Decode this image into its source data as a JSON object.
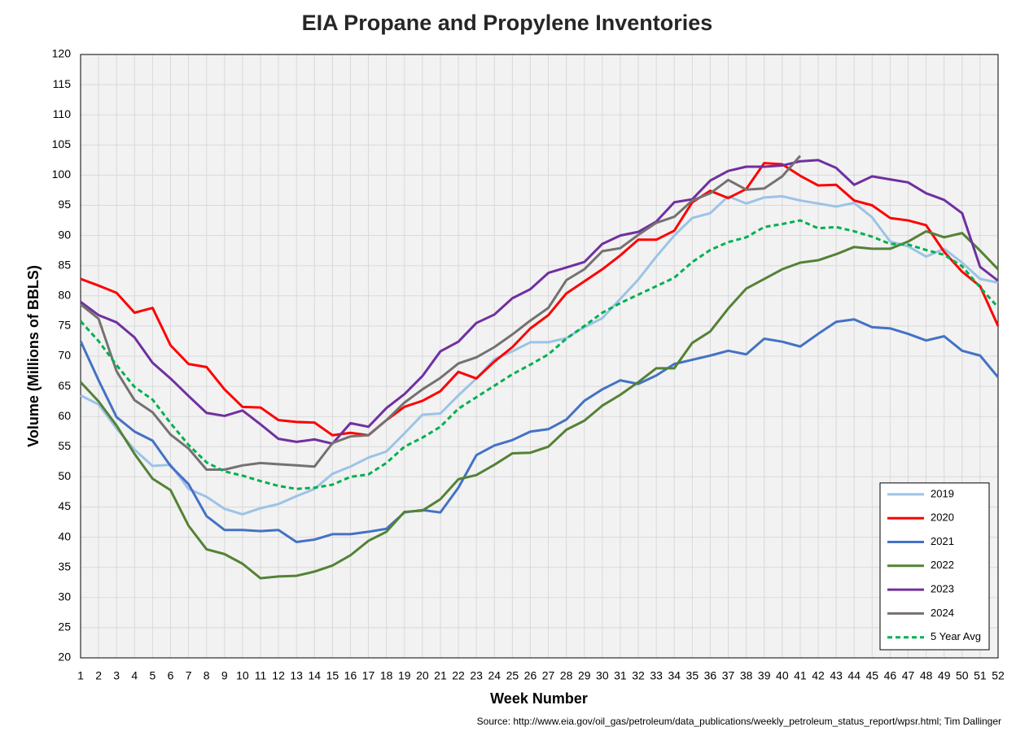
{
  "chart_data": {
    "type": "line",
    "title": "EIA Propane and Propylene Inventories",
    "x_label": "Week Number",
    "y_label": "Volume (Millions of BBLS)",
    "source": "Source: http://www.eia.gov/oil_gas/petroleum/data_publications/weekly_petroleum_status_report/wpsr.html; Tim Dallinger",
    "x": [
      1,
      2,
      3,
      4,
      5,
      6,
      7,
      8,
      9,
      10,
      11,
      12,
      13,
      14,
      15,
      16,
      17,
      18,
      19,
      20,
      21,
      22,
      23,
      24,
      25,
      26,
      27,
      28,
      29,
      30,
      31,
      32,
      33,
      34,
      35,
      36,
      37,
      38,
      39,
      40,
      41,
      42,
      43,
      44,
      45,
      46,
      47,
      48,
      49,
      50,
      51,
      52
    ],
    "xlim": [
      1,
      52
    ],
    "xticks": [
      1,
      2,
      3,
      4,
      5,
      6,
      7,
      8,
      9,
      10,
      11,
      12,
      13,
      14,
      15,
      16,
      17,
      18,
      19,
      20,
      21,
      22,
      23,
      24,
      25,
      26,
      27,
      28,
      29,
      30,
      31,
      32,
      33,
      34,
      35,
      36,
      37,
      38,
      39,
      40,
      41,
      42,
      43,
      44,
      45,
      46,
      47,
      48,
      49,
      50,
      51,
      52
    ],
    "ylim": [
      20,
      120
    ],
    "yticks": [
      20,
      25,
      30,
      35,
      40,
      45,
      50,
      55,
      60,
      65,
      70,
      75,
      80,
      85,
      90,
      95,
      100,
      105,
      110,
      115,
      120
    ],
    "grid": true,
    "legend": "lower right",
    "series": [
      {
        "name": "2019",
        "color": "#9dc3e6",
        "dash": false,
        "values": [
          63.5,
          62,
          58,
          54.5,
          51.8,
          52,
          48,
          46.7,
          44.7,
          43.8,
          44.8,
          45.5,
          46.8,
          48,
          50.5,
          51.7,
          53.2,
          54.2,
          57.2,
          60.3,
          60.5,
          63.5,
          66.3,
          69.5,
          70.8,
          72.3,
          72.3,
          73,
          74.8,
          76.3,
          79.5,
          82.7,
          86.5,
          90,
          92.9,
          93.7,
          96.5,
          95.3,
          96.3,
          96.5,
          95.8,
          95.3,
          94.8,
          95.4,
          93,
          89,
          88.2,
          86.5,
          87.8,
          85.5,
          82.8,
          82.2
        ]
      },
      {
        "name": "2020",
        "color": "#ff0000",
        "dash": false,
        "values": [
          82.8,
          81.7,
          80.5,
          77.2,
          78,
          71.8,
          68.7,
          68.2,
          64.5,
          61.6,
          61.5,
          59.4,
          59.1,
          59,
          56.9,
          57.3,
          56.9,
          59.4,
          61.6,
          62.6,
          64.2,
          67.4,
          66.3,
          69.1,
          71.5,
          74.6,
          76.8,
          80.4,
          82.4,
          84.4,
          86.7,
          89.3,
          89.3,
          90.8,
          95.5,
          97.4,
          96.2,
          97.7,
          102,
          101.8,
          99.9,
          98.3,
          98.4,
          95.8,
          95,
          92.9,
          92.5,
          91.7,
          87.3,
          84,
          81.6,
          75
        ]
      },
      {
        "name": "2021",
        "color": "#4472c4",
        "dash": false,
        "values": [
          72.5,
          66,
          59.9,
          57.5,
          56,
          51.8,
          48.8,
          43.5,
          41.2,
          41.2,
          41,
          41.2,
          39.2,
          39.6,
          40.5,
          40.5,
          40.9,
          41.4,
          44.1,
          44.5,
          44.1,
          48.2,
          53.6,
          55.2,
          56.1,
          57.5,
          57.9,
          59.5,
          62.6,
          64.5,
          66,
          65.4,
          66.8,
          68.7,
          69.4,
          70.1,
          70.9,
          70.3,
          72.9,
          72.4,
          71.6,
          73.7,
          75.7,
          76.1,
          74.8,
          74.6,
          73.7,
          72.6,
          73.3,
          70.9,
          70.1,
          66.5
        ]
      },
      {
        "name": "2022",
        "color": "#548235",
        "dash": false,
        "values": [
          65.7,
          62.5,
          58.5,
          53.8,
          49.7,
          47.8,
          41.9,
          38,
          37.2,
          35.6,
          33.2,
          33.5,
          33.6,
          34.3,
          35.3,
          37,
          39.4,
          40.9,
          44.2,
          44.4,
          46.3,
          49.6,
          50.3,
          52,
          53.9,
          54,
          55,
          57.8,
          59.3,
          61.8,
          63.6,
          65.7,
          68,
          68,
          72.2,
          74.1,
          77.9,
          81.2,
          82.8,
          84.4,
          85.5,
          85.9,
          86.9,
          88.1,
          87.8,
          87.8,
          89,
          90.7,
          89.7,
          90.4,
          87.5,
          84.4
        ]
      },
      {
        "name": "2023",
        "color": "#7030a0",
        "dash": false,
        "values": [
          79,
          76.8,
          75.6,
          73.1,
          68.9,
          66.3,
          63.4,
          60.6,
          60.1,
          61,
          58.7,
          56.3,
          55.8,
          56.2,
          55.5,
          58.9,
          58.3,
          61.4,
          63.7,
          66.7,
          70.8,
          72.4,
          75.5,
          76.9,
          79.6,
          81.1,
          83.8,
          84.7,
          85.6,
          88.6,
          90,
          90.6,
          92.3,
          95.5,
          96,
          99.1,
          100.7,
          101.4,
          101.4,
          101.6,
          102.3,
          102.5,
          101.2,
          98.4,
          99.8,
          99.3,
          98.8,
          97,
          95.9,
          93.7,
          84.8,
          82.5
        ]
      },
      {
        "name": "2024",
        "color": "#767171",
        "dash": false,
        "values": [
          78.6,
          76.2,
          67.5,
          62.7,
          60.7,
          57,
          54.7,
          51.2,
          51.2,
          51.9,
          52.3,
          52.1,
          51.9,
          51.7,
          55.6,
          56.7,
          56.9,
          59.4,
          62.3,
          64.5,
          66.4,
          68.8,
          69.8,
          71.5,
          73.6,
          75.9,
          78,
          82.6,
          84.4,
          87.4,
          87.9,
          90.1,
          92.1,
          93.1,
          95.8,
          97,
          99.2,
          97.6,
          97.8,
          99.8,
          103.2,
          null,
          null,
          null,
          null,
          null,
          null,
          null,
          null,
          null,
          null,
          null
        ]
      },
      {
        "name": "5 Year Avg",
        "color": "#00b050",
        "dash": true,
        "values": [
          75.8,
          72.5,
          68.5,
          64.9,
          62.8,
          58.9,
          55.3,
          52.4,
          50.9,
          50.2,
          49.3,
          48.5,
          48,
          48.2,
          48.7,
          50,
          50.4,
          52.3,
          55,
          56.5,
          58.3,
          61.3,
          63.2,
          65.1,
          67,
          68.6,
          70.3,
          72.9,
          75,
          77.2,
          78.8,
          80.2,
          81.6,
          83,
          85.6,
          87.6,
          88.9,
          89.7,
          91.4,
          91.9,
          92.5,
          91.2,
          91.4,
          90.7,
          89.8,
          88.6,
          88.5,
          87.6,
          86.8,
          84.9,
          81.4,
          78.1
        ]
      }
    ]
  }
}
